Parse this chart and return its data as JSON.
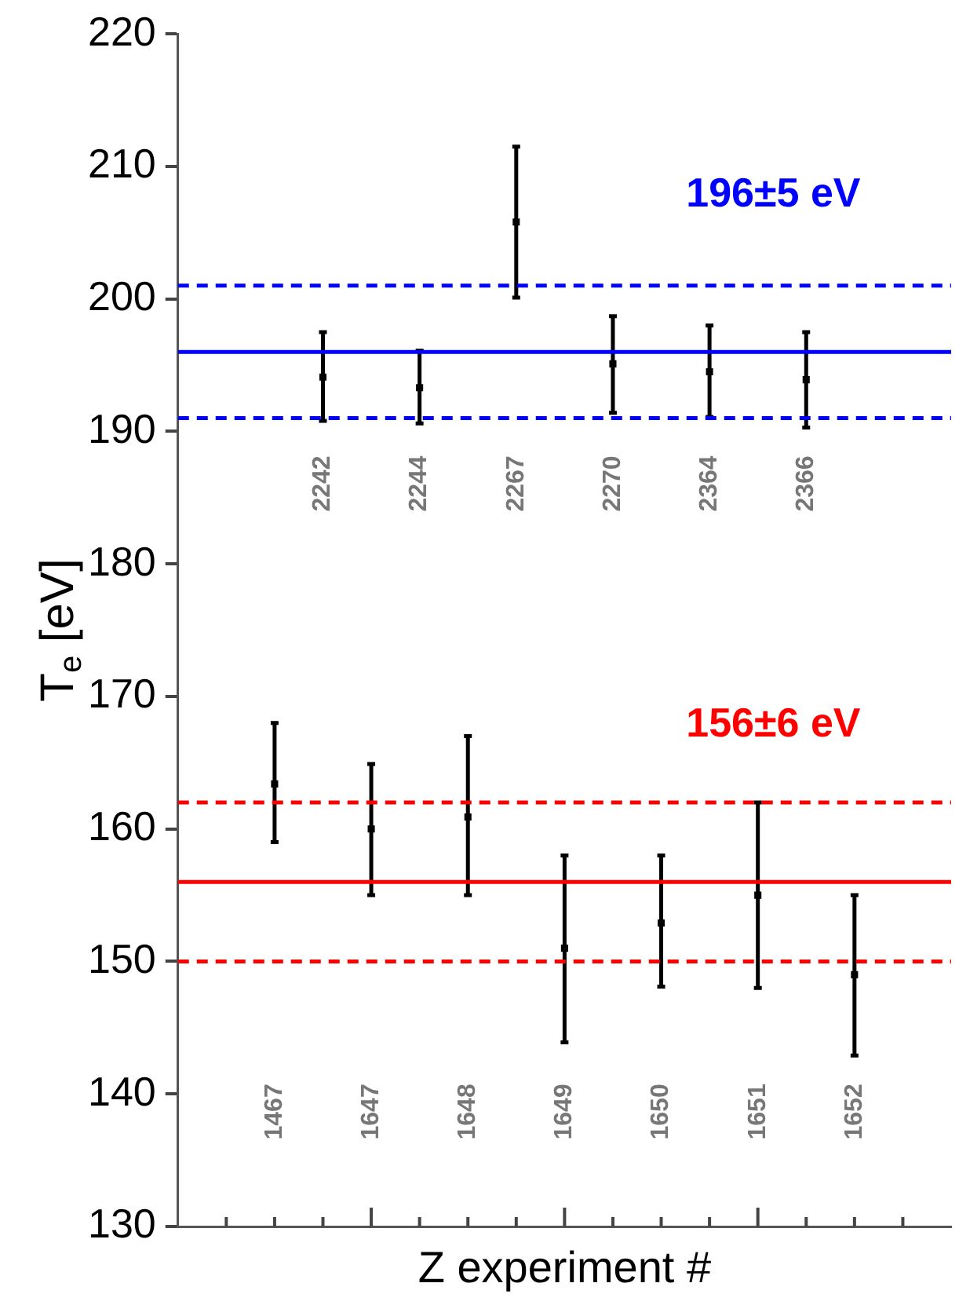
{
  "chart_data": {
    "type": "scatter",
    "xlabel": "Z experiment #",
    "ylabel": "T$_{e}$ [eV]",
    "categories": [
      "1467",
      "2242",
      "1647",
      "2244",
      "1648",
      "2267",
      "1649",
      "2270",
      "1650",
      "2364",
      "1651",
      "2366",
      "1652"
    ],
    "ylim": [
      130,
      220
    ],
    "yticks": [
      130,
      140,
      150,
      160,
      170,
      180,
      190,
      200,
      210,
      220
    ],
    "grid": false,
    "marker": "square",
    "series": [
      {
        "color": "#000000",
        "values": [
          null,
          194.1,
          null,
          193.3,
          null,
          205.8,
          null,
          195.1,
          null,
          194.5,
          null,
          193.9,
          null
        ],
        "errors": [
          null,
          [
            190.8,
            197.5
          ],
          null,
          [
            190.6,
            196.1
          ],
          null,
          [
            200.1,
            211.5
          ],
          null,
          [
            191.4,
            198.7
          ],
          null,
          [
            191.1,
            198.0
          ],
          null,
          [
            190.3,
            197.5
          ],
          null
        ]
      },
      {
        "color": "#000000",
        "values": [
          163.4,
          null,
          160.0,
          null,
          160.9,
          null,
          151.0,
          null,
          152.9,
          null,
          155.0,
          null,
          149.0
        ],
        "errors": [
          [
            159.0,
            168.0
          ],
          null,
          [
            155.0,
            164.9
          ],
          null,
          [
            155.0,
            167.0
          ],
          null,
          [
            143.9,
            158.0
          ],
          null,
          [
            148.1,
            158.0
          ],
          null,
          [
            148.0,
            162.0
          ],
          null,
          [
            142.9,
            155.0
          ]
        ]
      }
    ],
    "ref_lines": [
      {
        "axis": "y",
        "value": 196,
        "label": "196±5 eV",
        "color": "#0000ff",
        "line_style": "solid"
      },
      {
        "axis": "y",
        "value": 201,
        "color": "#0000ff",
        "line_style": "dashed"
      },
      {
        "axis": "y",
        "value": 191,
        "color": "#0000ff",
        "line_style": "dashed"
      },
      {
        "axis": "y",
        "value": 156,
        "label": "156±6 eV",
        "color": "#ff0000",
        "line_style": "solid"
      },
      {
        "axis": "y",
        "value": 162,
        "color": "#ff0000",
        "line_style": "dashed"
      },
      {
        "axis": "y",
        "value": 150,
        "color": "#ff0000",
        "line_style": "dashed"
      }
    ]
  }
}
